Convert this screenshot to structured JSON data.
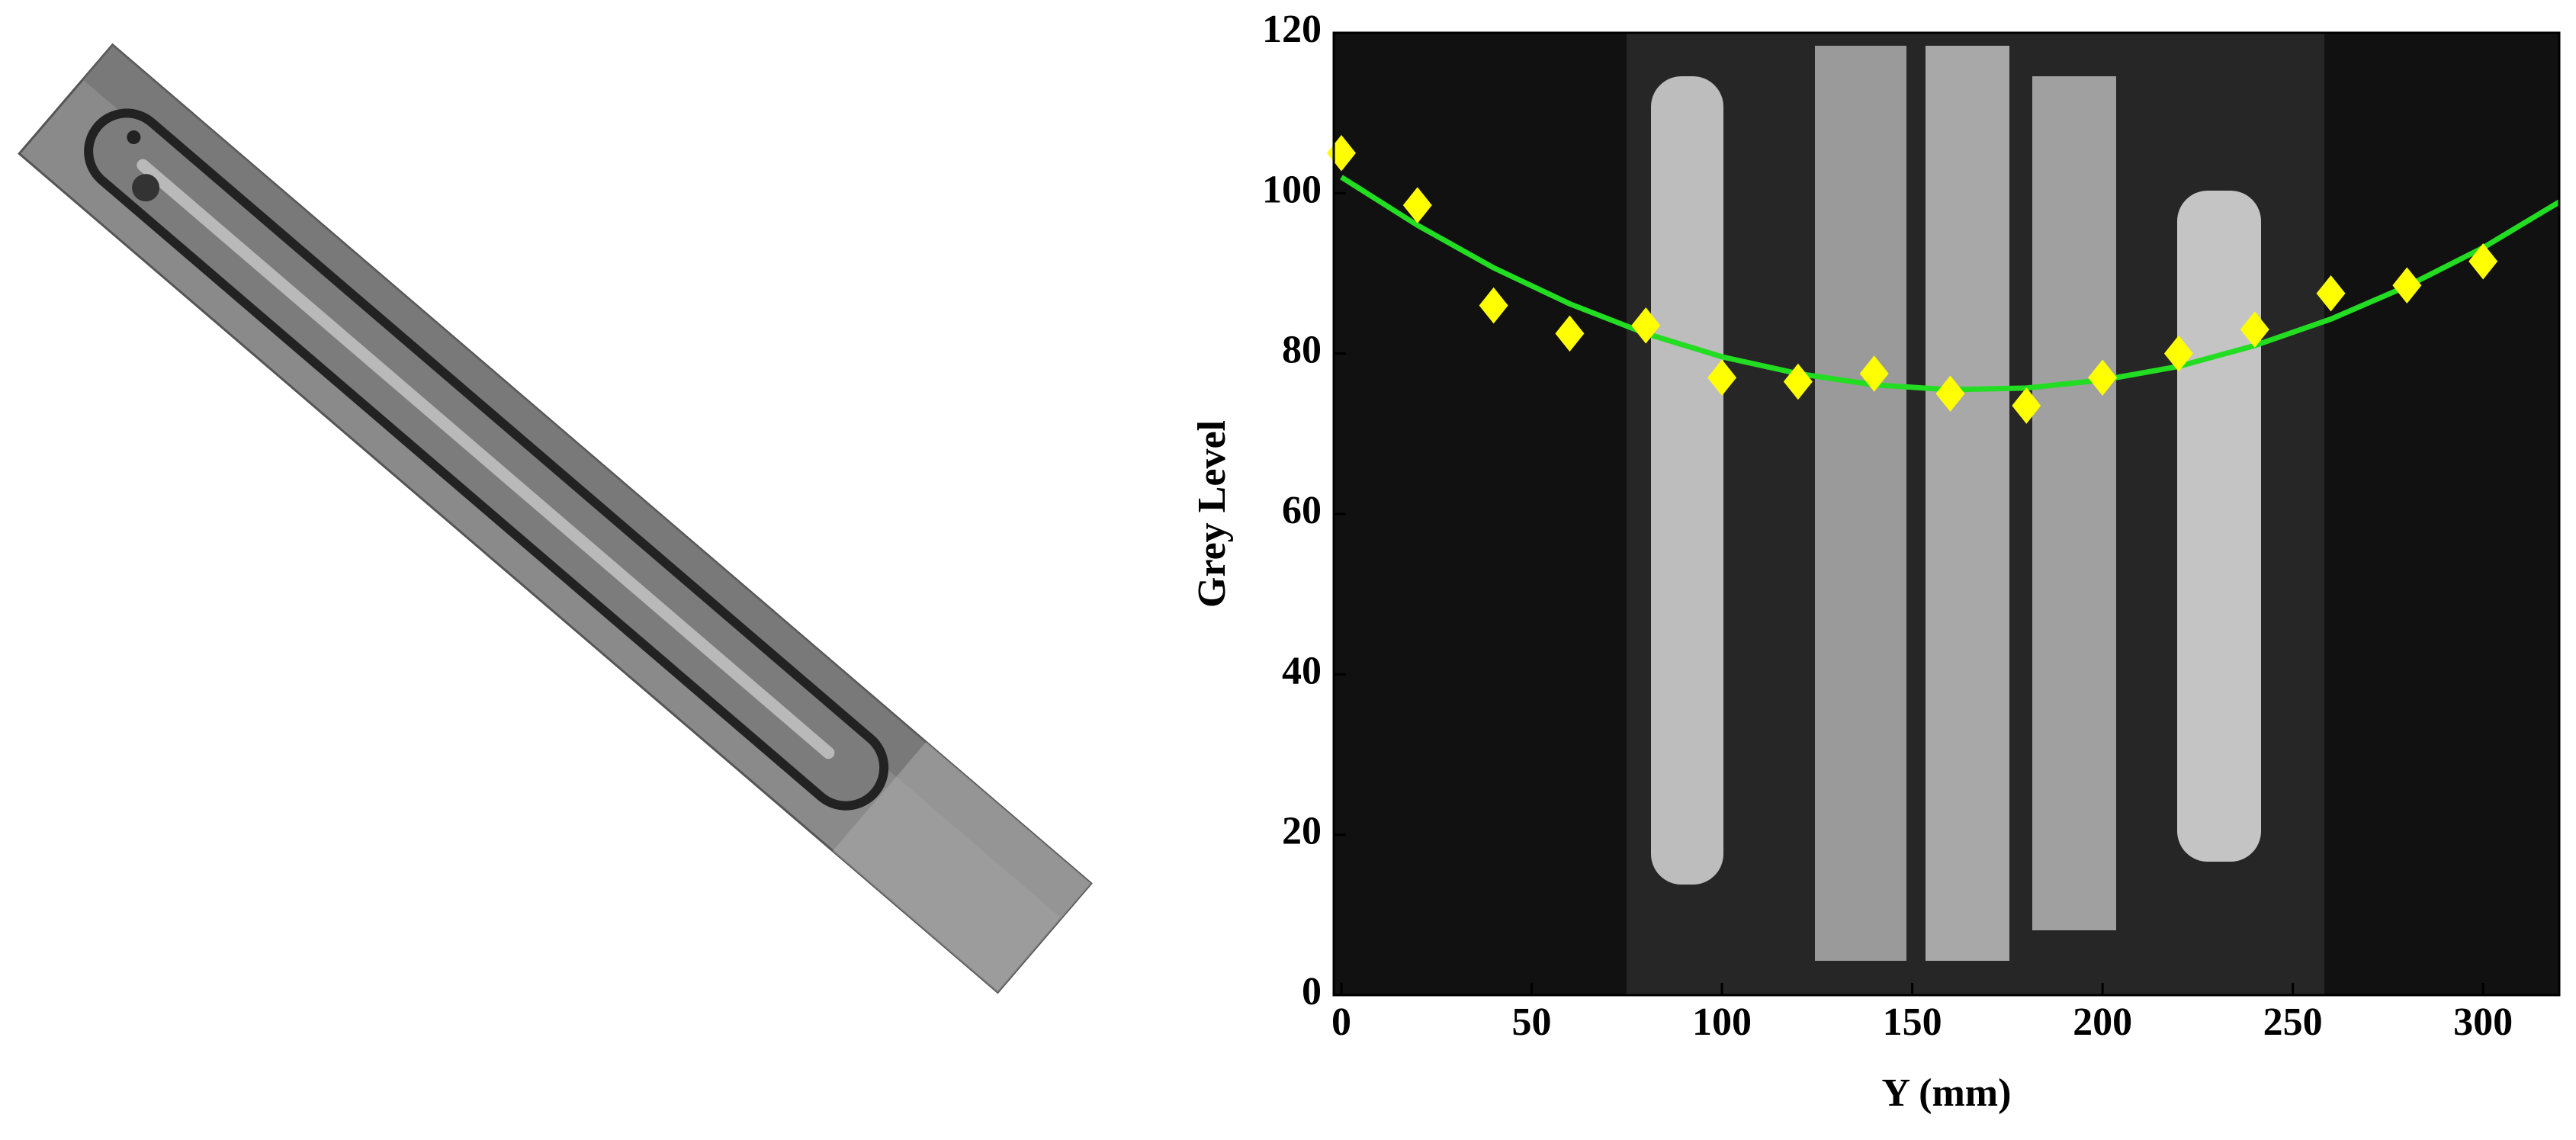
{
  "chart_data": {
    "type": "scatter",
    "xlabel": "Y (mm)",
    "ylabel": "Grey Level",
    "xlim": [
      -2,
      320
    ],
    "ylim": [
      0,
      120
    ],
    "xticks": [
      0,
      50,
      100,
      150,
      200,
      250,
      300
    ],
    "yticks": [
      0,
      20,
      40,
      60,
      80,
      100,
      120
    ],
    "series": [
      {
        "type": "scatter",
        "color": "#ffff00",
        "x": [
          0,
          20,
          40,
          60,
          80,
          100,
          120,
          140,
          160,
          180,
          200,
          220,
          240,
          260,
          280,
          300
        ],
        "values": [
          105,
          98.5,
          86,
          82.5,
          83.5,
          77,
          76.5,
          77.5,
          75,
          73.5,
          77,
          80,
          83,
          87.5,
          88.5,
          91.5
        ]
      },
      {
        "type": "line",
        "color": "#22dd22",
        "x": [
          0,
          20,
          40,
          60,
          80,
          100,
          120,
          140,
          160,
          180,
          200,
          220,
          240,
          260,
          280,
          300,
          320
        ],
        "values": [
          102,
          96,
          90.7,
          86.2,
          82.5,
          79.6,
          77.5,
          76.1,
          75.5,
          75.7,
          76.7,
          78.4,
          81,
          84.3,
          88.4,
          93.2,
          98.9
        ]
      }
    ]
  }
}
